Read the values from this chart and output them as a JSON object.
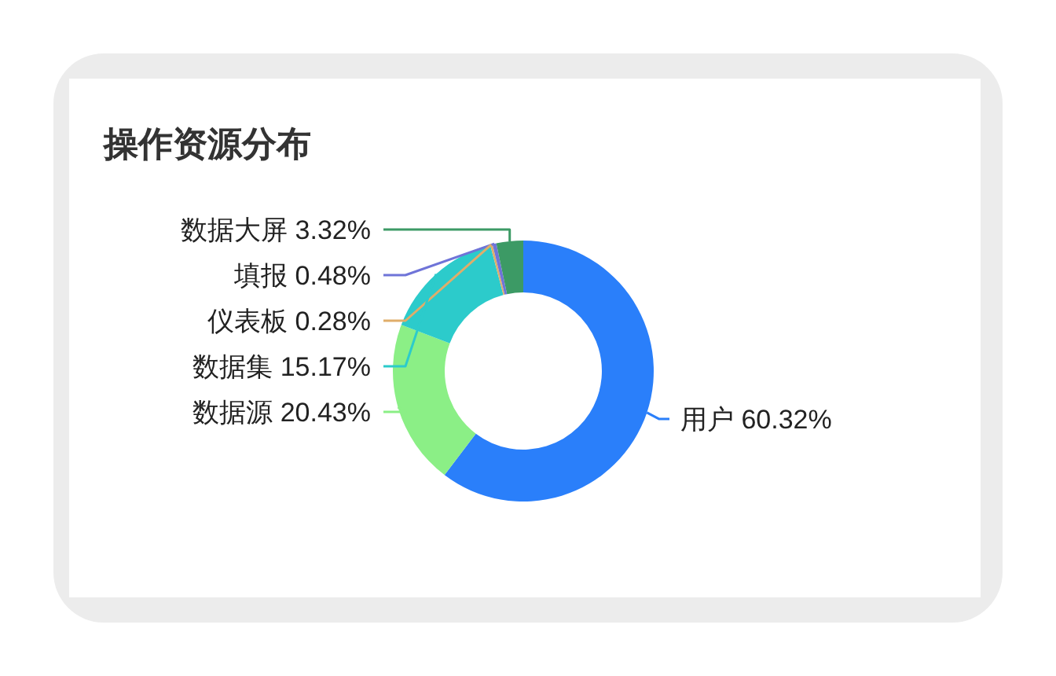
{
  "chart_data": {
    "type": "donut",
    "title": "操作资源分布",
    "categories": [
      "用户",
      "数据源",
      "数据集",
      "仪表板",
      "填报",
      "数据大屏"
    ],
    "values": [
      60.32,
      20.43,
      15.17,
      0.28,
      0.48,
      3.32
    ],
    "value_labels": [
      "60.32%",
      "20.43%",
      "15.17%",
      "0.28%",
      "0.48%",
      "3.32%"
    ],
    "colors": [
      "#2a7ffa",
      "#8bef86",
      "#2ccbcb",
      "#e0ad6a",
      "#6f74d8",
      "#3c9a65"
    ]
  }
}
